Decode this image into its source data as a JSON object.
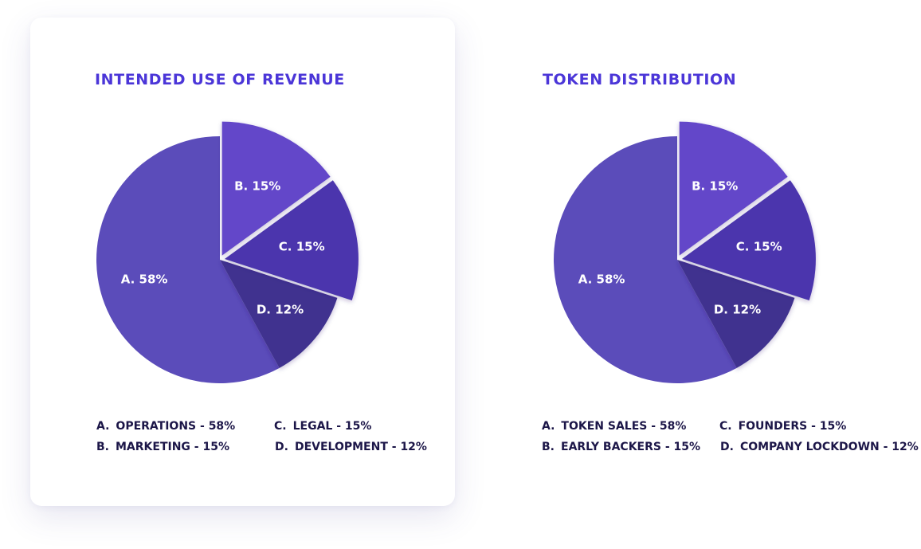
{
  "colors": {
    "card_background": "#ffffff",
    "title": "#4b36d8",
    "legend_text": "#1c1648",
    "slice_label": "#ffffff",
    "slice_a": "#5b4cba",
    "slice_b": "#6446c9",
    "slice_c": "#4b34ad",
    "slice_d": "#40308f"
  },
  "chart_data": [
    {
      "type": "pie",
      "title": "INTENDED USE OF REVENUE",
      "exploded": [
        "B",
        "C"
      ],
      "slices": [
        {
          "letter": "A.",
          "label": "OPERATIONS - 58%",
          "pie_label": "A. 58%",
          "value": 58
        },
        {
          "letter": "B.",
          "label": "MARKETING - 15%",
          "pie_label": "B. 15%",
          "value": 15
        },
        {
          "letter": "C.",
          "label": "LEGAL - 15%",
          "pie_label": "C. 15%",
          "value": 15
        },
        {
          "letter": "D.",
          "label": "DEVELOPMENT - 12%",
          "pie_label": "D. 12%",
          "value": 12
        }
      ]
    },
    {
      "type": "pie",
      "title": "TOKEN DISTRIBUTION",
      "exploded": [
        "B",
        "C"
      ],
      "slices": [
        {
          "letter": "A.",
          "label": "TOKEN SALES - 58%",
          "pie_label": "A. 58%",
          "value": 58
        },
        {
          "letter": "B.",
          "label": "EARLY BACKERS - 15%",
          "pie_label": "B. 15%",
          "value": 15
        },
        {
          "letter": "C.",
          "label": "FOUNDERS - 15%",
          "pie_label": "C. 15%",
          "value": 15
        },
        {
          "letter": "D.",
          "label": "COMPANY LOCKDOWN - 12%",
          "pie_label": "D. 12%",
          "value": 12
        }
      ]
    }
  ]
}
